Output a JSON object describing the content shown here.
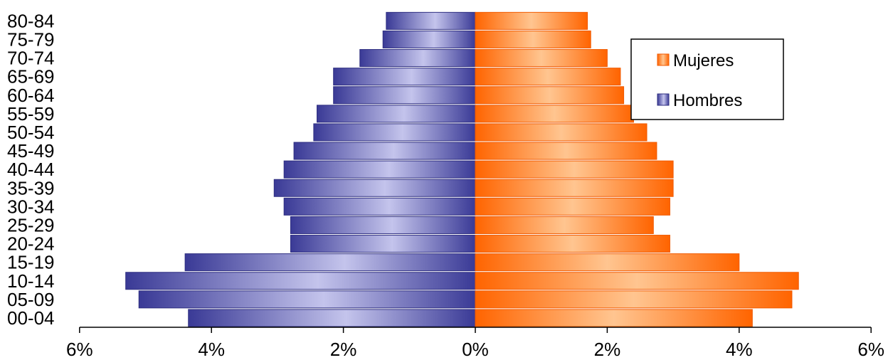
{
  "chart_data": {
    "type": "bar",
    "orientation": "horizontal",
    "categories": [
      "00-04",
      "05-09",
      "10-14",
      "15-19",
      "20-24",
      "25-29",
      "30-34",
      "35-39",
      "40-44",
      "45-49",
      "50-54",
      "55-59",
      "60-64",
      "65-69",
      "70-74",
      "75-79",
      "80-84"
    ],
    "series": [
      {
        "name": "Hombres",
        "values": [
          4.35,
          5.1,
          5.3,
          4.4,
          2.8,
          2.8,
          2.9,
          3.05,
          2.9,
          2.75,
          2.45,
          2.4,
          2.15,
          2.15,
          1.75,
          1.4,
          1.35
        ],
        "color": "#3F3F9C"
      },
      {
        "name": "Mujeres",
        "values": [
          4.2,
          4.8,
          4.9,
          4.0,
          2.95,
          2.7,
          2.95,
          3.0,
          3.0,
          2.75,
          2.6,
          2.4,
          2.25,
          2.2,
          2.0,
          1.75,
          1.7
        ],
        "color": "#FF6A10"
      }
    ],
    "x_ticks": [
      "6%",
      "4%",
      "2%",
      "0%",
      "2%",
      "4%",
      "6%"
    ],
    "xlim": [
      -6,
      6
    ],
    "xlabel": "",
    "ylabel": "",
    "grid": false,
    "legend_position": "top-right"
  }
}
